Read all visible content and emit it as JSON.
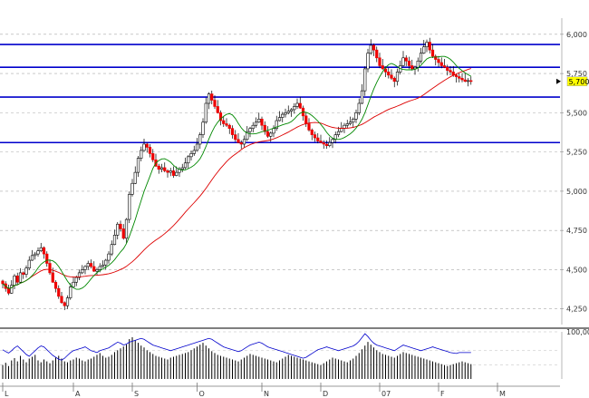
{
  "chart_data": {
    "type": "candlestick",
    "title": "",
    "price_axis": {
      "ylim": [
        4150,
        6080
      ],
      "ticks": [
        4250,
        4500,
        4750,
        5000,
        5250,
        5500,
        5750,
        6000
      ],
      "tick_labels": [
        "4,250",
        "4,500",
        "4,750",
        "5,000",
        "5,250",
        "5,500",
        "5,750",
        "6,000"
      ],
      "grid": true
    },
    "current_price": {
      "value": 5700,
      "label": "5,700",
      "badge_color": "#ffff00"
    },
    "x_axis": {
      "month_labels": [
        "L",
        "A",
        "S",
        "O",
        "N",
        "D",
        "07",
        "F",
        "M"
      ],
      "month_label_colors": [
        "#333333",
        "#333333",
        "#333333",
        "#333333",
        "#333333",
        "#333333",
        "#cc0000",
        "#333333",
        "#333333"
      ],
      "month_start_bars": [
        0,
        24,
        44,
        66,
        88,
        108,
        128,
        148,
        168
      ]
    },
    "horizontal_lines": [
      {
        "value": 5935,
        "color": "#0000cc"
      },
      {
        "value": 5790,
        "color": "#0000cc"
      },
      {
        "value": 5600,
        "color": "#0000cc"
      },
      {
        "value": 5310,
        "color": "#0000cc"
      }
    ],
    "candles": {
      "up_color": "#ffffff",
      "down_color": "#ee0000",
      "outline_color": "#000000",
      "closes": [
        4410,
        4380,
        4350,
        4400,
        4460,
        4420,
        4480,
        4470,
        4510,
        4560,
        4590,
        4600,
        4620,
        4640,
        4600,
        4540,
        4480,
        4420,
        4380,
        4330,
        4290,
        4270,
        4320,
        4390,
        4420,
        4450,
        4480,
        4500,
        4520,
        4540,
        4520,
        4490,
        4500,
        4520,
        4530,
        4560,
        4600,
        4660,
        4720,
        4790,
        4760,
        4700,
        4820,
        4980,
        5050,
        5120,
        5210,
        5260,
        5300,
        5280,
        5240,
        5200,
        5160,
        5140,
        5150,
        5130,
        5120,
        5130,
        5100,
        5120,
        5140,
        5150,
        5180,
        5220,
        5240,
        5260,
        5300,
        5360,
        5440,
        5560,
        5620,
        5580,
        5540,
        5500,
        5450,
        5430,
        5420,
        5400,
        5360,
        5330,
        5310,
        5300,
        5330,
        5380,
        5400,
        5420,
        5440,
        5460,
        5420,
        5380,
        5350,
        5370,
        5400,
        5450,
        5470,
        5490,
        5500,
        5510,
        5520,
        5540,
        5560,
        5530,
        5480,
        5430,
        5390,
        5360,
        5340,
        5320,
        5310,
        5300,
        5290,
        5310,
        5330,
        5360,
        5380,
        5400,
        5420,
        5430,
        5440,
        5460,
        5500,
        5560,
        5640,
        5780,
        5880,
        5930,
        5900,
        5850,
        5800,
        5780,
        5760,
        5740,
        5720,
        5700,
        5760,
        5800,
        5850,
        5830,
        5800,
        5780,
        5790,
        5830,
        5880,
        5920,
        5950,
        5900,
        5860,
        5840,
        5820,
        5800,
        5790,
        5770,
        5760,
        5740,
        5730,
        5720,
        5710,
        5700,
        5705,
        5700
      ],
      "range_pct": 0.012
    },
    "sma_short": {
      "color": "#008800",
      "period": 10
    },
    "sma_long": {
      "color": "#dd0000",
      "period": 40
    },
    "indicator_panel": {
      "tick_label": "100,00",
      "line_color": "#0000cc",
      "bar_color": "#000000",
      "oscillator_values": [
        62,
        58,
        55,
        60,
        66,
        70,
        64,
        58,
        52,
        48,
        54,
        60,
        66,
        70,
        68,
        62,
        56,
        50,
        46,
        42,
        40,
        44,
        50,
        56,
        60,
        62,
        64,
        66,
        68,
        64,
        60,
        58,
        56,
        60,
        62,
        64,
        66,
        70,
        74,
        78,
        76,
        72,
        74,
        78,
        80,
        82,
        84,
        86,
        84,
        80,
        76,
        72,
        70,
        68,
        66,
        64,
        62,
        60,
        62,
        64,
        66,
        68,
        70,
        72,
        74,
        76,
        78,
        80,
        82,
        84,
        86,
        84,
        80,
        76,
        72,
        68,
        66,
        64,
        62,
        60,
        58,
        60,
        64,
        68,
        72,
        74,
        76,
        78,
        76,
        72,
        68,
        66,
        64,
        62,
        60,
        58,
        56,
        54,
        52,
        50,
        48,
        46,
        44,
        46,
        50,
        54,
        58,
        62,
        64,
        66,
        68,
        66,
        64,
        62,
        60,
        62,
        64,
        66,
        68,
        70,
        74,
        80,
        88,
        96,
        90,
        82,
        76,
        72,
        70,
        68,
        66,
        64,
        62,
        60,
        64,
        68,
        72,
        70,
        68,
        66,
        64,
        62,
        60,
        62,
        64,
        66,
        68,
        66,
        64,
        62,
        60,
        58,
        56,
        55,
        54,
        56,
        56,
        56,
        56,
        56
      ],
      "volume_values": [
        30,
        35,
        28,
        40,
        45,
        38,
        50,
        42,
        36,
        44,
        48,
        52,
        40,
        36,
        42,
        38,
        34,
        40,
        46,
        50,
        44,
        38,
        36,
        40,
        42,
        46,
        44,
        40,
        38,
        42,
        44,
        48,
        52,
        56,
        50,
        46,
        48,
        52,
        58,
        62,
        66,
        70,
        74,
        86,
        90,
        84,
        78,
        72,
        68,
        62,
        58,
        54,
        50,
        48,
        46,
        44,
        42,
        46,
        48,
        50,
        52,
        54,
        56,
        58,
        62,
        66,
        70,
        74,
        78,
        72,
        66,
        60,
        56,
        52,
        50,
        48,
        46,
        44,
        42,
        40,
        38,
        42,
        46,
        50,
        54,
        52,
        50,
        48,
        46,
        44,
        42,
        40,
        38,
        36,
        40,
        44,
        48,
        52,
        50,
        48,
        46,
        44,
        42,
        40,
        38,
        36,
        34,
        32,
        30,
        34,
        38,
        42,
        46,
        44,
        42,
        40,
        38,
        36,
        40,
        44,
        50,
        56,
        64,
        72,
        80,
        74,
        68,
        62,
        58,
        54,
        52,
        50,
        48,
        46,
        50,
        54,
        58,
        56,
        54,
        52,
        50,
        48,
        46,
        44,
        42,
        40,
        38,
        36,
        34,
        32,
        30,
        28,
        30,
        32,
        34,
        36,
        38,
        36,
        34,
        32
      ]
    }
  }
}
